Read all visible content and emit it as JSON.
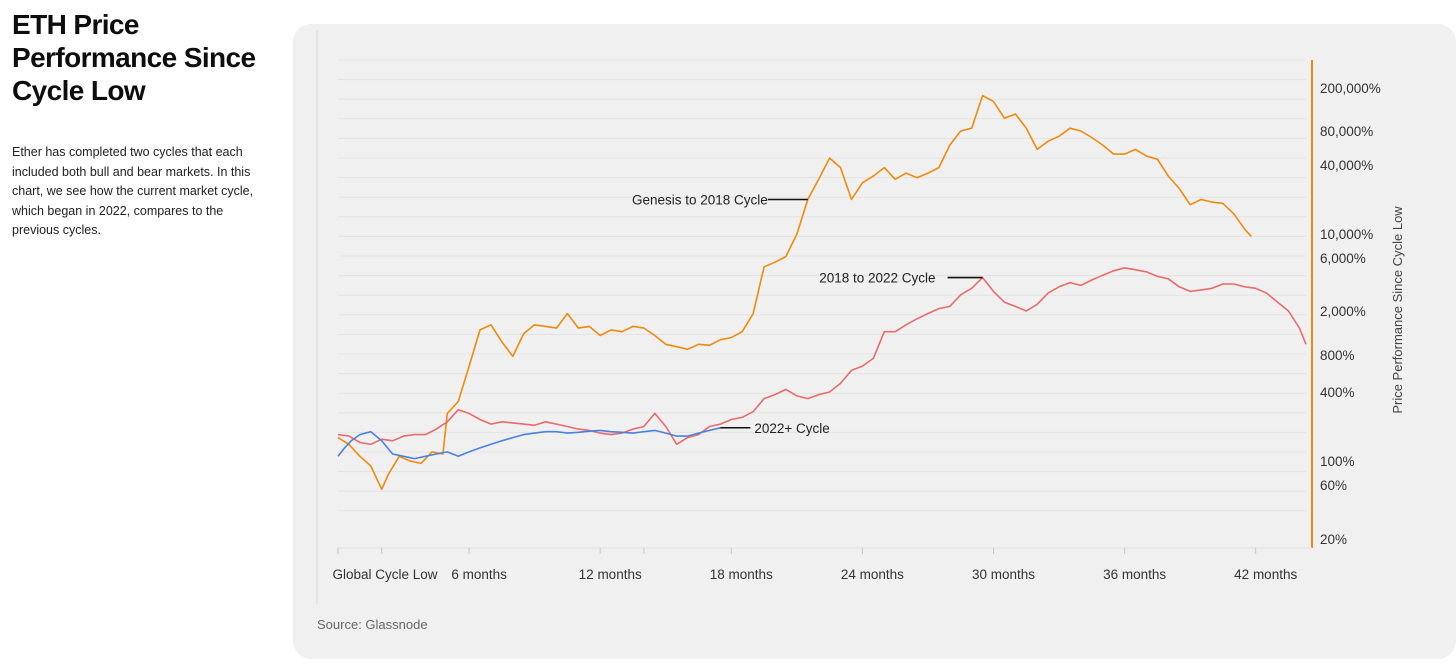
{
  "page": {
    "title": "ETH Price Performance Since Cycle Low",
    "description": "Ether has completed two cycles that each included both bull and bear markets. In this chart, we see how the current market cycle, which began in 2022, compares to the previous cycles.",
    "source": "Source: Glassnode"
  },
  "chart_data": {
    "type": "line",
    "ylabel": "Price Performance Since Cycle Low",
    "xlabel": "",
    "y_scale": "log",
    "x_unit": "months since cycle low",
    "x_ticks": [
      {
        "value": 0,
        "label": "Global Cycle Low"
      },
      {
        "value": 6,
        "label": "6 months"
      },
      {
        "value": 12,
        "label": "12 months"
      },
      {
        "value": 18,
        "label": "18 months"
      },
      {
        "value": 24,
        "label": "24 months"
      },
      {
        "value": 30,
        "label": "30 months"
      },
      {
        "value": 36,
        "label": "36 months"
      },
      {
        "value": 42,
        "label": "42 months"
      }
    ],
    "y_ticks": [
      {
        "value": 200000,
        "label": "200,000%"
      },
      {
        "value": 80000,
        "label": "80,000%"
      },
      {
        "value": 40000,
        "label": "40,000%"
      },
      {
        "value": 10000,
        "label": "10,000%"
      },
      {
        "value": 6000,
        "label": "6,000%"
      },
      {
        "value": 2000,
        "label": "2,000%"
      },
      {
        "value": 800,
        "label": "800%"
      },
      {
        "value": 400,
        "label": "400%"
      },
      {
        "value": 100,
        "label": "100%"
      },
      {
        "value": 60,
        "label": "60%"
      },
      {
        "value": 20,
        "label": "20%"
      }
    ],
    "series": [
      {
        "name": "Genesis to 2018 Cycle",
        "color": "#f08a0c",
        "points": [
          [
            0,
            160
          ],
          [
            0.5,
            140
          ],
          [
            1,
            110
          ],
          [
            1.5,
            90
          ],
          [
            2,
            55
          ],
          [
            2.3,
            75
          ],
          [
            2.8,
            110
          ],
          [
            3.3,
            100
          ],
          [
            3.8,
            95
          ],
          [
            4.3,
            120
          ],
          [
            4.8,
            115
          ],
          [
            5,
            260
          ],
          [
            5.5,
            330
          ],
          [
            6,
            650
          ],
          [
            6.5,
            1350
          ],
          [
            7,
            1500
          ],
          [
            7.5,
            1050
          ],
          [
            8,
            780
          ],
          [
            8.5,
            1250
          ],
          [
            9,
            1500
          ],
          [
            9.5,
            1450
          ],
          [
            10,
            1400
          ],
          [
            10.5,
            1900
          ],
          [
            11,
            1400
          ],
          [
            11.5,
            1450
          ],
          [
            12,
            1200
          ],
          [
            12.5,
            1350
          ],
          [
            13,
            1300
          ],
          [
            13.5,
            1450
          ],
          [
            14,
            1400
          ],
          [
            14.5,
            1200
          ],
          [
            15,
            1000
          ],
          [
            15.5,
            950
          ],
          [
            16,
            900
          ],
          [
            16.5,
            1000
          ],
          [
            17,
            980
          ],
          [
            17.5,
            1100
          ],
          [
            18,
            1150
          ],
          [
            18.5,
            1300
          ],
          [
            19,
            1900
          ],
          [
            19.5,
            5000
          ],
          [
            20,
            5500
          ],
          [
            20.5,
            6200
          ],
          [
            21,
            10000
          ],
          [
            21.5,
            20000
          ],
          [
            22,
            30000
          ],
          [
            22.5,
            46000
          ],
          [
            23,
            38000
          ],
          [
            23.5,
            20000
          ],
          [
            24,
            28000
          ],
          [
            24.5,
            32000
          ],
          [
            25,
            38000
          ],
          [
            25.5,
            30000
          ],
          [
            26,
            34000
          ],
          [
            26.5,
            31000
          ],
          [
            27,
            34000
          ],
          [
            27.5,
            38000
          ],
          [
            28,
            60000
          ],
          [
            28.5,
            80000
          ],
          [
            29,
            85000
          ],
          [
            29.5,
            170000
          ],
          [
            30,
            150000
          ],
          [
            30.5,
            105000
          ],
          [
            31,
            115000
          ],
          [
            31.5,
            85000
          ],
          [
            32,
            55000
          ],
          [
            32.5,
            65000
          ],
          [
            33,
            72000
          ],
          [
            33.5,
            85000
          ],
          [
            34,
            80000
          ],
          [
            34.5,
            70000
          ],
          [
            35,
            60000
          ],
          [
            35.5,
            50000
          ],
          [
            36,
            50000
          ],
          [
            36.5,
            55000
          ],
          [
            37,
            48000
          ],
          [
            37.5,
            45000
          ],
          [
            38,
            32000
          ],
          [
            38.5,
            25000
          ],
          [
            39,
            18000
          ],
          [
            39.5,
            20000
          ],
          [
            40,
            19000
          ],
          [
            40.5,
            18500
          ],
          [
            41,
            15000
          ],
          [
            41.5,
            11000
          ],
          [
            41.8,
            9500
          ]
        ]
      },
      {
        "name": "2018 to 2022 Cycle",
        "color": "#e96b6b",
        "points": [
          [
            0,
            170
          ],
          [
            0.5,
            165
          ],
          [
            1,
            145
          ],
          [
            1.5,
            140
          ],
          [
            2,
            155
          ],
          [
            2.5,
            150
          ],
          [
            3,
            165
          ],
          [
            3.5,
            170
          ],
          [
            4,
            170
          ],
          [
            4.5,
            190
          ],
          [
            5,
            220
          ],
          [
            5.5,
            280
          ],
          [
            6,
            260
          ],
          [
            6.5,
            230
          ],
          [
            7,
            210
          ],
          [
            7.5,
            220
          ],
          [
            8,
            215
          ],
          [
            8.5,
            210
          ],
          [
            9,
            205
          ],
          [
            9.5,
            220
          ],
          [
            10,
            210
          ],
          [
            10.5,
            200
          ],
          [
            11,
            190
          ],
          [
            11.5,
            185
          ],
          [
            12,
            175
          ],
          [
            12.5,
            170
          ],
          [
            13,
            175
          ],
          [
            13.5,
            190
          ],
          [
            14,
            200
          ],
          [
            14.5,
            260
          ],
          [
            15,
            200
          ],
          [
            15.5,
            140
          ],
          [
            16,
            160
          ],
          [
            16.5,
            170
          ],
          [
            17,
            200
          ],
          [
            17.5,
            210
          ],
          [
            18,
            230
          ],
          [
            18.5,
            240
          ],
          [
            19,
            270
          ],
          [
            19.5,
            350
          ],
          [
            20,
            380
          ],
          [
            20.5,
            420
          ],
          [
            21,
            370
          ],
          [
            21.5,
            350
          ],
          [
            22,
            380
          ],
          [
            22.5,
            400
          ],
          [
            23,
            470
          ],
          [
            23.5,
            600
          ],
          [
            24,
            650
          ],
          [
            24.5,
            750
          ],
          [
            25,
            1300
          ],
          [
            25.5,
            1300
          ],
          [
            26,
            1500
          ],
          [
            26.5,
            1700
          ],
          [
            27,
            1900
          ],
          [
            27.5,
            2100
          ],
          [
            28,
            2200
          ],
          [
            28.5,
            2800
          ],
          [
            29,
            3200
          ],
          [
            29.5,
            4000
          ],
          [
            30,
            3000
          ],
          [
            30.5,
            2400
          ],
          [
            31,
            2200
          ],
          [
            31.5,
            2000
          ],
          [
            32,
            2300
          ],
          [
            32.5,
            2900
          ],
          [
            33,
            3300
          ],
          [
            33.5,
            3600
          ],
          [
            34,
            3400
          ],
          [
            34.5,
            3800
          ],
          [
            35,
            4200
          ],
          [
            35.5,
            4600
          ],
          [
            36,
            4900
          ],
          [
            36.5,
            4700
          ],
          [
            37,
            4500
          ],
          [
            37.5,
            4100
          ],
          [
            38,
            3900
          ],
          [
            38.5,
            3300
          ],
          [
            39,
            3000
          ],
          [
            39.5,
            3100
          ],
          [
            40,
            3200
          ],
          [
            40.5,
            3500
          ],
          [
            41,
            3500
          ],
          [
            41.5,
            3300
          ],
          [
            42,
            3200
          ],
          [
            42.5,
            2900
          ],
          [
            43,
            2400
          ],
          [
            43.5,
            2000
          ],
          [
            44,
            1400
          ],
          [
            44.3,
            1000
          ]
        ]
      },
      {
        "name": "2022+ Cycle",
        "color": "#4a82e0",
        "points": [
          [
            0,
            110
          ],
          [
            0.3,
            130
          ],
          [
            0.6,
            150
          ],
          [
            1,
            170
          ],
          [
            1.5,
            180
          ],
          [
            2,
            150
          ],
          [
            2.5,
            115
          ],
          [
            3,
            110
          ],
          [
            3.5,
            105
          ],
          [
            4,
            110
          ],
          [
            4.5,
            115
          ],
          [
            5,
            120
          ],
          [
            5.5,
            110
          ],
          [
            6,
            120
          ],
          [
            6.5,
            130
          ],
          [
            7,
            140
          ],
          [
            7.5,
            150
          ],
          [
            8,
            160
          ],
          [
            8.5,
            170
          ],
          [
            9,
            175
          ],
          [
            9.5,
            180
          ],
          [
            10,
            180
          ],
          [
            10.5,
            175
          ],
          [
            11,
            178
          ],
          [
            11.5,
            182
          ],
          [
            12,
            185
          ],
          [
            12.5,
            180
          ],
          [
            13,
            178
          ],
          [
            13.5,
            175
          ],
          [
            14,
            180
          ],
          [
            14.5,
            185
          ],
          [
            15,
            175
          ],
          [
            15.5,
            165
          ],
          [
            16,
            165
          ],
          [
            16.5,
            175
          ],
          [
            17,
            185
          ],
          [
            17.5,
            195
          ]
        ]
      }
    ],
    "annotations": [
      {
        "text": "Genesis to 2018 Cycle",
        "x": 21.5,
        "y": 20000
      },
      {
        "text": "2018 to 2022 Cycle",
        "x": 29.5,
        "y": 4000
      },
      {
        "text": "2022+ Cycle",
        "x": 17.5,
        "y": 195
      }
    ],
    "grid": "horizontal",
    "legend": "inline labels",
    "right_axis_color": "#f08a0c"
  }
}
